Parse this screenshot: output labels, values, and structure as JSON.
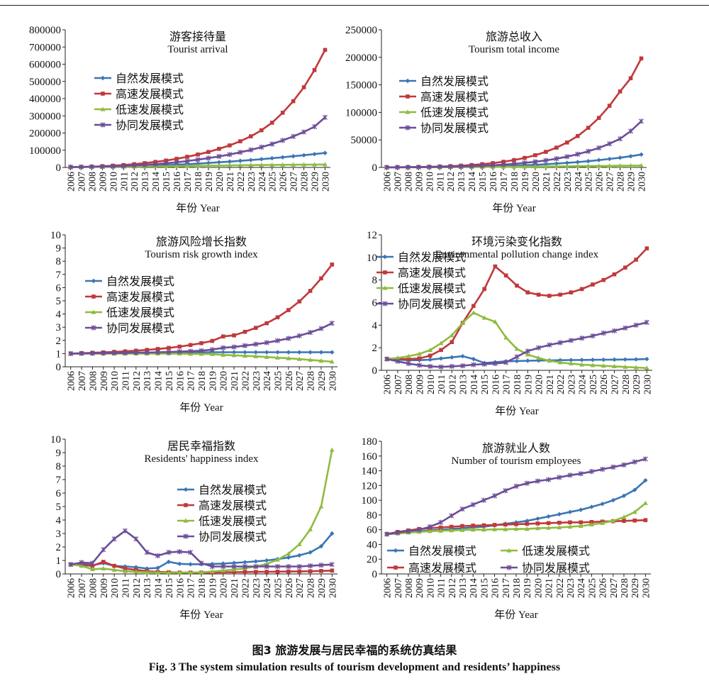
{
  "caption": {
    "cn": "图3 旅游发展与居民幸福的系统仿真结果",
    "en": "Fig. 3 The system simulation results of tourism development and residents’ happiness"
  },
  "colors": {
    "natural": "#3b76b4",
    "high": "#c0393b",
    "low": "#8fbc3f",
    "coordinated": "#6c4d98",
    "axis": "#222222"
  },
  "chart_data": [
    {
      "type": "line",
      "title": "游客接待量",
      "subtitle": "Tourist arrival",
      "xlabel": "年份 Year",
      "ylabel": "",
      "ylim": [
        0,
        800000
      ],
      "yticks": [
        0,
        100000,
        200000,
        300000,
        400000,
        500000,
        600000,
        700000,
        800000
      ],
      "legend_position": "upper-left",
      "legend_layout": "column",
      "x": [
        "2006",
        "2007",
        "2008",
        "2009",
        "2010",
        "2011",
        "2012",
        "2013",
        "2014",
        "2015",
        "2016",
        "2017",
        "2018",
        "2019",
        "2020",
        "2021",
        "2022",
        "2023",
        "2024",
        "2025",
        "2026",
        "2027",
        "2028",
        "2029",
        "2030"
      ],
      "series": [
        {
          "name": "自然发展模式",
          "values": [
            2000,
            2500,
            3200,
            4000,
            5000,
            6200,
            7500,
            9000,
            11000,
            13500,
            16000,
            19000,
            22000,
            26000,
            30000,
            34000,
            38500,
            43000,
            48000,
            53500,
            59000,
            65000,
            71000,
            77500,
            84000
          ]
        },
        {
          "name": "高速发展模式",
          "values": [
            2000,
            3000,
            4500,
            7000,
            10000,
            14000,
            19000,
            25000,
            32000,
            40000,
            50000,
            62000,
            75000,
            90000,
            108000,
            128000,
            152000,
            181000,
            216000,
            260000,
            318000,
            385000,
            466000,
            566000,
            683000
          ]
        },
        {
          "name": "低速发展模式",
          "values": [
            2000,
            2300,
            2700,
            3100,
            3600,
            4100,
            4700,
            5300,
            6000,
            6700,
            7500,
            8300,
            9100,
            10000,
            10800,
            11600,
            12400,
            13200,
            13900,
            14600,
            15200,
            15700,
            16200,
            16500,
            16800
          ]
        },
        {
          "name": "协同发展模式",
          "values": [
            2000,
            2700,
            3700,
            5000,
            6700,
            8800,
            11500,
            15000,
            19000,
            24000,
            30000,
            37000,
            45000,
            54000,
            64000,
            75000,
            88000,
            102000,
            118000,
            136000,
            157000,
            180000,
            206000,
            237000,
            291000
          ]
        }
      ]
    },
    {
      "type": "line",
      "title": "旅游总收入",
      "subtitle": "Tourism total income",
      "xlabel": "年份 Year",
      "ylabel": "",
      "ylim": [
        0,
        250000
      ],
      "yticks": [
        0,
        50000,
        100000,
        150000,
        200000,
        250000
      ],
      "legend_position": "upper-left",
      "legend_layout": "column",
      "x": [
        "2006",
        "2007",
        "2008",
        "2009",
        "2010",
        "2011",
        "2012",
        "2013",
        "2014",
        "2015",
        "2016",
        "2017",
        "2018",
        "2019",
        "2020",
        "2021",
        "2022",
        "2023",
        "2024",
        "2025",
        "2026",
        "2027",
        "2028",
        "2029",
        "2030"
      ],
      "series": [
        {
          "name": "自然发展模式",
          "values": [
            200,
            250,
            330,
            420,
            540,
            690,
            870,
            1100,
            1400,
            1750,
            2150,
            2650,
            3250,
            3950,
            4800,
            5800,
            6900,
            8200,
            9700,
            11400,
            13300,
            15400,
            17700,
            20300,
            23500
          ]
        },
        {
          "name": "高速发展模式",
          "values": [
            200,
            300,
            480,
            740,
            1100,
            1600,
            2300,
            3200,
            4400,
            5900,
            7800,
            10300,
            13400,
            17300,
            22200,
            28300,
            35900,
            45300,
            57000,
            72000,
            90000,
            112000,
            138000,
            162000,
            198000
          ]
        },
        {
          "name": "低速发展模式",
          "values": [
            200,
            230,
            270,
            320,
            380,
            450,
            530,
            620,
            720,
            830,
            950,
            1080,
            1220,
            1370,
            1530,
            1700,
            1880,
            2060,
            2250,
            2450,
            2650,
            2850,
            3050,
            3250,
            3450
          ]
        },
        {
          "name": "协同发展模式",
          "values": [
            200,
            280,
            390,
            540,
            740,
            1000,
            1350,
            1800,
            2380,
            3100,
            4000,
            5100,
            6500,
            8200,
            10300,
            12800,
            15900,
            19600,
            24000,
            29300,
            35500,
            43000,
            52000,
            66000,
            84000
          ]
        }
      ]
    },
    {
      "type": "line",
      "title": "旅游风险增长指数",
      "subtitle": "Tourism risk growth index",
      "xlabel": "年份 Year",
      "ylabel": "",
      "ylim": [
        0,
        10
      ],
      "yticks": [
        0,
        1,
        2,
        3,
        4,
        5,
        6,
        7,
        8,
        9,
        10
      ],
      "legend_position": "center-left",
      "legend_layout": "column",
      "x": [
        "2006",
        "2007",
        "2008",
        "2009",
        "2010",
        "2011",
        "2012",
        "2013",
        "2014",
        "2015",
        "2016",
        "2017",
        "2018",
        "2019",
        "2020",
        "2021",
        "2022",
        "2023",
        "2024",
        "2025",
        "2026",
        "2027",
        "2028",
        "2029",
        "2030"
      ],
      "series": [
        {
          "name": "自然发展模式",
          "values": [
            1.0,
            1.01,
            1.02,
            1.03,
            1.04,
            1.05,
            1.06,
            1.07,
            1.08,
            1.08,
            1.09,
            1.09,
            1.09,
            1.1,
            1.1,
            1.1,
            1.1,
            1.1,
            1.1,
            1.1,
            1.1,
            1.1,
            1.1,
            1.1,
            1.1
          ]
        },
        {
          "name": "高速发展模式",
          "values": [
            1.0,
            1.03,
            1.06,
            1.09,
            1.13,
            1.17,
            1.22,
            1.28,
            1.35,
            1.43,
            1.53,
            1.65,
            1.79,
            1.96,
            2.3,
            2.38,
            2.65,
            2.95,
            3.3,
            3.75,
            4.3,
            4.95,
            5.75,
            6.7,
            7.75
          ]
        },
        {
          "name": "低速发展模式",
          "values": [
            1.0,
            1.0,
            1.0,
            1.0,
            1.0,
            1.0,
            1.0,
            1.0,
            1.0,
            1.0,
            0.99,
            0.98,
            0.97,
            0.96,
            0.9,
            0.87,
            0.83,
            0.79,
            0.74,
            0.69,
            0.64,
            0.58,
            0.52,
            0.45,
            0.38
          ]
        },
        {
          "name": "协同发展模式",
          "values": [
            1.0,
            1.01,
            1.02,
            1.03,
            1.04,
            1.05,
            1.07,
            1.08,
            1.1,
            1.12,
            1.15,
            1.18,
            1.22,
            1.3,
            1.44,
            1.5,
            1.6,
            1.71,
            1.83,
            1.98,
            2.15,
            2.35,
            2.6,
            2.9,
            3.3
          ]
        }
      ]
    },
    {
      "type": "line",
      "title": "环境污染变化指数",
      "subtitle": "Environmental pollution change index",
      "xlabel": "年份 Year",
      "ylabel": "",
      "ylim": [
        0,
        12
      ],
      "yticks": [
        0,
        2,
        4,
        6,
        8,
        10,
        12
      ],
      "legend_position": "upper-left",
      "legend_layout": "column",
      "x": [
        "2006",
        "2007",
        "2008",
        "2009",
        "2010",
        "2011",
        "2012",
        "2013",
        "2014",
        "2015",
        "2016",
        "2017",
        "2018",
        "2019",
        "2020",
        "2021",
        "2022",
        "2023",
        "2024",
        "2025",
        "2026",
        "2027",
        "2028",
        "2029",
        "2030"
      ],
      "series": [
        {
          "name": "自然发展模式",
          "values": [
            1.0,
            0.95,
            0.9,
            0.9,
            0.95,
            1.05,
            1.15,
            1.25,
            1.0,
            0.65,
            0.72,
            0.8,
            0.82,
            0.85,
            0.87,
            0.88,
            0.9,
            0.91,
            0.92,
            0.93,
            0.94,
            0.95,
            0.96,
            0.97,
            1.0
          ]
        },
        {
          "name": "高速发展模式",
          "values": [
            1.0,
            1.0,
            1.0,
            1.05,
            1.3,
            1.8,
            2.5,
            4.2,
            5.7,
            7.2,
            9.2,
            8.4,
            7.5,
            6.9,
            6.7,
            6.6,
            6.7,
            6.9,
            7.2,
            7.6,
            8.0,
            8.5,
            9.1,
            9.8,
            10.8
          ]
        },
        {
          "name": "低速发展模式",
          "values": [
            1.0,
            1.1,
            1.25,
            1.45,
            1.8,
            2.4,
            3.1,
            4.2,
            5.1,
            4.65,
            4.3,
            2.9,
            1.9,
            1.4,
            1.1,
            0.85,
            0.7,
            0.6,
            0.5,
            0.45,
            0.4,
            0.35,
            0.3,
            0.25,
            0.2
          ]
        },
        {
          "name": "协同发展模式",
          "values": [
            1.0,
            0.8,
            0.6,
            0.45,
            0.35,
            0.3,
            0.35,
            0.4,
            0.5,
            0.55,
            0.6,
            0.7,
            1.2,
            1.7,
            2.0,
            2.25,
            2.45,
            2.65,
            2.85,
            3.05,
            3.3,
            3.5,
            3.75,
            4.0,
            4.25
          ]
        }
      ]
    },
    {
      "type": "line",
      "title": "居民幸福指数",
      "subtitle": "Residents' happiness index",
      "xlabel": "年份 Year",
      "ylabel": "",
      "ylim": [
        0,
        10
      ],
      "yticks": [
        0,
        1,
        2,
        3,
        4,
        5,
        6,
        7,
        8,
        9,
        10
      ],
      "legend_position": "center-right",
      "legend_layout": "column",
      "x": [
        "2006",
        "2007",
        "2008",
        "2009",
        "2010",
        "2011",
        "2012",
        "2013",
        "2014",
        "2015",
        "2016",
        "2017",
        "2018",
        "2019",
        "2020",
        "2021",
        "2022",
        "2023",
        "2024",
        "2025",
        "2026",
        "2027",
        "2028",
        "2029",
        "2030"
      ],
      "series": [
        {
          "name": "自然发展模式",
          "values": [
            0.7,
            0.75,
            0.65,
            0.8,
            0.6,
            0.55,
            0.5,
            0.4,
            0.45,
            0.9,
            0.75,
            0.72,
            0.72,
            0.74,
            0.77,
            0.82,
            0.87,
            0.93,
            1.0,
            1.1,
            1.22,
            1.38,
            1.6,
            2.05,
            3.0
          ]
        },
        {
          "name": "高速发展模式",
          "values": [
            0.7,
            0.65,
            0.6,
            0.9,
            0.6,
            0.4,
            0.3,
            0.2,
            0.15,
            0.12,
            0.1,
            0.1,
            0.1,
            0.1,
            0.12,
            0.13,
            0.14,
            0.15,
            0.16,
            0.17,
            0.18,
            0.19,
            0.2,
            0.22,
            0.25
          ]
        },
        {
          "name": "低速发展模式",
          "values": [
            0.7,
            0.6,
            0.35,
            0.4,
            0.3,
            0.2,
            0.15,
            0.12,
            0.1,
            0.08,
            0.1,
            0.1,
            0.12,
            0.18,
            0.25,
            0.32,
            0.42,
            0.55,
            0.75,
            1.05,
            1.5,
            2.2,
            3.3,
            5.0,
            9.2
          ]
        },
        {
          "name": "协同发展模式",
          "values": [
            0.7,
            0.85,
            0.8,
            1.8,
            2.6,
            3.2,
            2.6,
            1.6,
            1.35,
            1.6,
            1.65,
            1.6,
            0.8,
            0.55,
            0.55,
            0.55,
            0.55,
            0.55,
            0.55,
            0.55,
            0.55,
            0.55,
            0.6,
            0.65,
            0.7
          ]
        }
      ]
    },
    {
      "type": "line",
      "title": "旅游就业人数",
      "subtitle": "Number of tourism employees",
      "xlabel": "年份 Year",
      "ylabel": "",
      "ylim": [
        0,
        180
      ],
      "yticks": [
        0,
        20,
        40,
        60,
        80,
        100,
        120,
        140,
        160,
        180
      ],
      "legend_position": "bottom",
      "legend_layout": "grid-2x2",
      "x": [
        "2006",
        "2007",
        "2008",
        "2009",
        "2010",
        "2011",
        "2012",
        "2013",
        "2014",
        "2015",
        "2016",
        "2017",
        "2018",
        "2019",
        "2020",
        "2021",
        "2022",
        "2023",
        "2024",
        "2025",
        "2026",
        "2027",
        "2028",
        "2029",
        "2030"
      ],
      "series": [
        {
          "name": "自然发展模式",
          "values": [
            54,
            55,
            57,
            58,
            59,
            60,
            61,
            62,
            63,
            64,
            66,
            68,
            70,
            72,
            75,
            78,
            81,
            84,
            87,
            91,
            95,
            100,
            106,
            114,
            127
          ]
        },
        {
          "name": "高速发展模式",
          "values": [
            54,
            57,
            59,
            61,
            62,
            63,
            64,
            65,
            65.5,
            66,
            66.5,
            67,
            67.5,
            68,
            68.5,
            69,
            69.5,
            70,
            70,
            70.5,
            71,
            71.5,
            72,
            72.5,
            73
          ]
        },
        {
          "name": "低速发展模式",
          "values": [
            54,
            55,
            56,
            57,
            58,
            58.5,
            59,
            59.5,
            60,
            60,
            60.5,
            60.5,
            61,
            61,
            62,
            62.5,
            63,
            64,
            65,
            67,
            69,
            72,
            77,
            84,
            96
          ]
        },
        {
          "name": "协同发展模式",
          "values": [
            54,
            56,
            58,
            60,
            64,
            70,
            79,
            88,
            94,
            100,
            106,
            113,
            119,
            123,
            126,
            128,
            131,
            134,
            136,
            139,
            142,
            145,
            148,
            152,
            156
          ]
        }
      ]
    }
  ]
}
